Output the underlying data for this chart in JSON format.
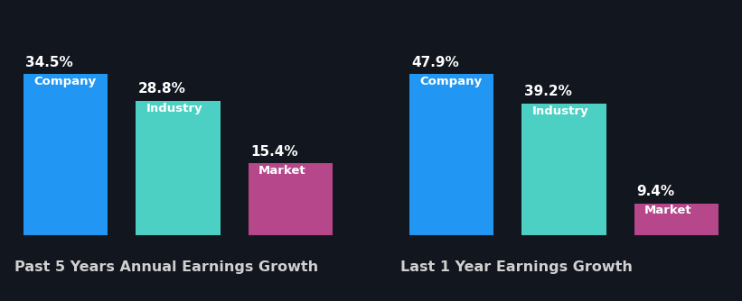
{
  "background_color": "#12161f",
  "chart1": {
    "title": "Past 5 Years Annual Earnings Growth",
    "categories": [
      "Company",
      "Industry",
      "Market"
    ],
    "values": [
      34.5,
      28.8,
      15.4
    ],
    "colors": [
      "#2196f3",
      "#4dd0c4",
      "#b5478a"
    ]
  },
  "chart2": {
    "title": "Last 1 Year Earnings Growth",
    "categories": [
      "Company",
      "Industry",
      "Market"
    ],
    "values": [
      47.9,
      39.2,
      9.4
    ],
    "colors": [
      "#2196f3",
      "#4dd0c4",
      "#b5478a"
    ]
  },
  "text_color": "#ffffff",
  "title_color": "#d0d0d0",
  "label_fontsize": 9.5,
  "value_fontsize": 11,
  "title_fontsize": 11.5,
  "bar_width": 0.75,
  "bar_spacing": 1.0
}
